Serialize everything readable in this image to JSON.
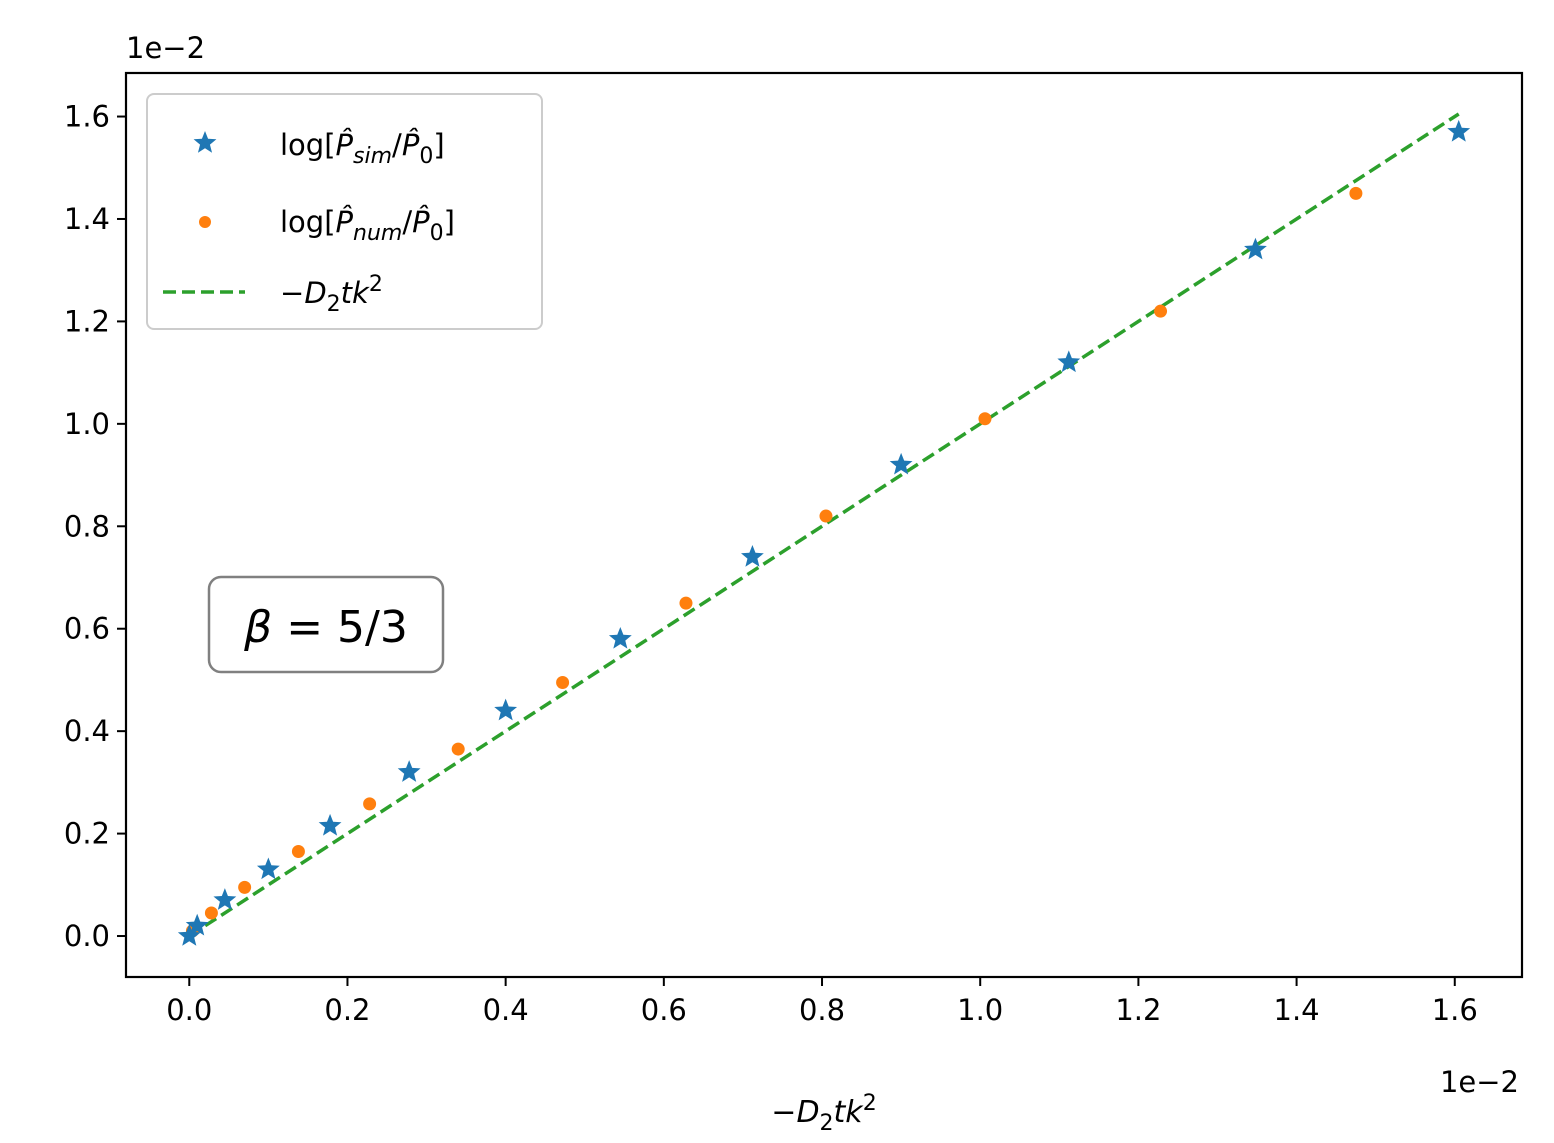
{
  "chart_data": {
    "type": "scatter",
    "xlabel": "−D₂tk²",
    "ylabel": "",
    "x_offset_label": "1e−2",
    "y_offset_label": "1e−2",
    "xlim": [
      -0.0008,
      0.01685
    ],
    "ylim": [
      -0.0008,
      0.01685
    ],
    "x_ticks": [
      0.0,
      0.002,
      0.004,
      0.006,
      0.008,
      0.01,
      0.012,
      0.014,
      0.016
    ],
    "y_ticks": [
      0.0,
      0.002,
      0.004,
      0.006,
      0.008,
      0.01,
      0.012,
      0.014,
      0.016
    ],
    "x_tick_labels": [
      "0.0",
      "0.2",
      "0.4",
      "0.6",
      "0.8",
      "1.0",
      "1.2",
      "1.4",
      "1.6"
    ],
    "y_tick_labels": [
      "0.0",
      "0.2",
      "0.4",
      "0.6",
      "0.8",
      "1.0",
      "1.2",
      "1.4",
      "1.6"
    ],
    "grid": false,
    "legend_position": "top-left",
    "series": [
      {
        "name": "log[P̂sim/P̂0]",
        "marker": "star",
        "color": "#1f77b4",
        "x": [
          0.0,
          0.0001,
          0.00045,
          0.001,
          0.00178,
          0.00278,
          0.004,
          0.00545,
          0.00712,
          0.009,
          0.01112,
          0.01348,
          0.01605
        ],
        "y": [
          0.0,
          0.0002,
          0.0007,
          0.0013,
          0.00215,
          0.0032,
          0.0044,
          0.0058,
          0.0074,
          0.0092,
          0.0112,
          0.0134,
          0.0157
        ]
      },
      {
        "name": "log[P̂num/P̂0]",
        "marker": "dot",
        "color": "#ff7f0e",
        "x": [
          4e-05,
          0.00028,
          0.0007,
          0.00138,
          0.00228,
          0.0034,
          0.00472,
          0.00628,
          0.00805,
          0.01006,
          0.01228,
          0.01475
        ],
        "y": [
          0.0001,
          0.00045,
          0.00095,
          0.00165,
          0.00258,
          0.00365,
          0.00495,
          0.0065,
          0.0082,
          0.0101,
          0.0122,
          0.0145
        ]
      },
      {
        "name": "−D₂tk²",
        "line_style": "dashed",
        "color": "#2ca02c",
        "x": [
          0.0,
          0.01605
        ],
        "y": [
          0.0,
          0.01605
        ]
      }
    ],
    "annotation": "β = 5/3"
  },
  "legend": {
    "sim": {
      "base": "log[",
      "hat": "P̂",
      "sub": "sim",
      "slash": "/",
      "hat0": "P̂",
      "sub0": "0",
      "close": "]"
    },
    "num": {
      "base": "log[",
      "hat": "P̂",
      "sub": "num",
      "slash": "/",
      "hat0": "P̂",
      "sub0": "0",
      "close": "]"
    },
    "line": {
      "minus": "−",
      "d": "D",
      "dsub": "2",
      "tk": "tk",
      "sup": "2"
    }
  },
  "xlabel_parts": {
    "minus": "−",
    "d": "D",
    "dsub": "2",
    "tk": "tk",
    "sup": "2"
  },
  "annotation_parts": {
    "beta": "β",
    "rest": " = 5/3"
  }
}
